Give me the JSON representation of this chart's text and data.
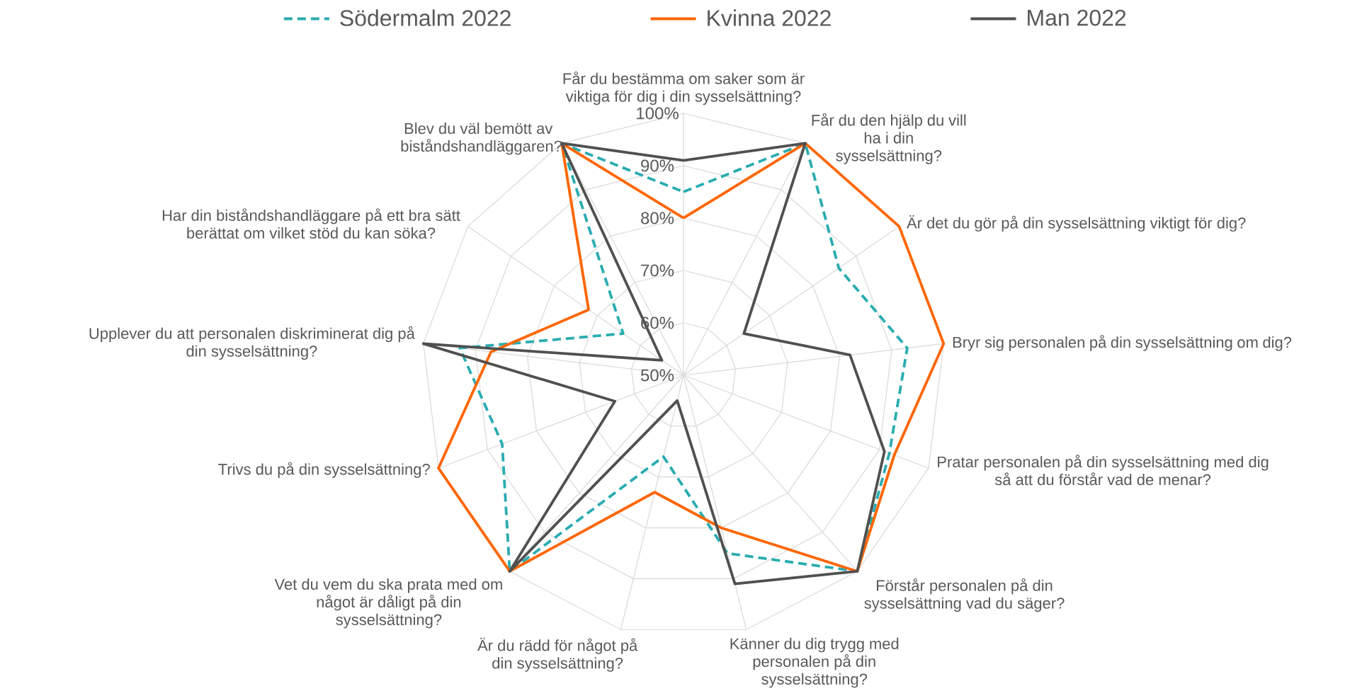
{
  "chart_data": {
    "type": "radar",
    "categories": [
      "Får du bestämma om saker som är viktiga för dig i din sysselsättning?",
      "Får du den hjälp du vill ha i din sysselsättning?",
      "Är det du gör på din sysselsättning viktigt för dig?",
      "Bryr sig personalen på din sysselsättning om dig?",
      "Pratar personalen på din sysselsättning med dig så att du förstår vad de menar?",
      "Förstår personalen på din sysselsättning vad du säger?",
      "Känner du dig trygg med personalen på din sysselsättning?",
      "Är du rädd för något på din sysselsättning?",
      "Vet du vem du ska prata med om något är dåligt på din sysselsättning?",
      "Trivs du på din sysselsättning?",
      "Upplever du att personalen diskriminerat dig på din sysselsättning?",
      "Har din biståndshandläggare på ett bra sätt berättat om vilket stöd du kan söka?",
      "Blev du väl bemött av biståndshandläggaren?"
    ],
    "series": [
      {
        "name": "Södermalm 2022",
        "color": "#2aacb0",
        "line_style": "dashed",
        "values": [
          85,
          100,
          86,
          93,
          92,
          100,
          85,
          66,
          100,
          87,
          93,
          64,
          100
        ]
      },
      {
        "name": "Kvinna 2022",
        "color": "#ff6600",
        "line_style": "solid",
        "values": [
          80,
          100,
          100,
          100,
          93,
          100,
          80,
          73,
          100,
          100,
          87,
          72,
          100
        ]
      },
      {
        "name": "Man 2022",
        "color": "#505050",
        "line_style": "solid",
        "values": [
          91,
          100,
          64,
          82,
          91,
          100,
          91,
          55,
          100,
          64,
          100,
          55,
          100
        ]
      }
    ],
    "ylim": [
      50,
      100
    ],
    "yticks": [
      {
        "value": 50,
        "label": "50%"
      },
      {
        "value": 60,
        "label": "60%"
      },
      {
        "value": 70,
        "label": "70%"
      },
      {
        "value": 80,
        "label": "80%"
      },
      {
        "value": 90,
        "label": "90%"
      },
      {
        "value": 100,
        "label": "100%"
      }
    ],
    "grid": true,
    "legend": "top",
    "marker": "none"
  }
}
